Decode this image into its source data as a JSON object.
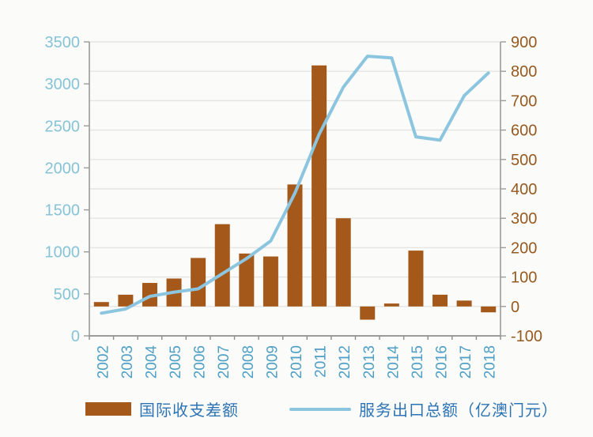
{
  "figure": {
    "background": "#fbfbf9"
  },
  "chart_data": {
    "type": "combo-bar-line",
    "title": "",
    "categories": [
      "2002",
      "2003",
      "2004",
      "2005",
      "2006",
      "2007",
      "2008",
      "2009",
      "2010",
      "2011",
      "2012",
      "2013",
      "2014",
      "2015",
      "2016",
      "2017",
      "2018"
    ],
    "series": [
      {
        "name": "国际收支差额",
        "type": "bar",
        "axis": "right",
        "color": "#A4591B",
        "values": [
          15,
          40,
          80,
          95,
          165,
          280,
          180,
          170,
          415,
          820,
          300,
          -45,
          10,
          190,
          40,
          20,
          -20
        ]
      },
      {
        "name": "服务出口总额（亿澳门元）",
        "type": "line",
        "axis": "left",
        "color": "#8CC5DF",
        "values": [
          270,
          320,
          470,
          520,
          560,
          740,
          920,
          1130,
          1700,
          2400,
          2960,
          3330,
          3310,
          2370,
          2330,
          2860,
          3130
        ]
      }
    ],
    "left_axis": {
      "min": 0,
      "max": 3500,
      "step": 500,
      "tick_labels": [
        "3500",
        "3000",
        "2500",
        "2000",
        "1500",
        "1000",
        "500",
        "0"
      ],
      "label_color": "#86C3D7"
    },
    "right_axis": {
      "min": -100,
      "max": 900,
      "step": 100,
      "tick_labels": [
        "900",
        "800",
        "700",
        "600",
        "500",
        "400",
        "300",
        "200",
        "100",
        "0",
        "-100"
      ],
      "label_color": "#96591F"
    },
    "x_axis": {
      "label_color": "#4E9FC6",
      "label_rotation": -90
    },
    "grid": {
      "show": true,
      "color": "#e4e4e2"
    },
    "axis_line_color": "#9b9b9b",
    "legend": {
      "position": "bottom",
      "text_color": "#2E74B5"
    }
  }
}
